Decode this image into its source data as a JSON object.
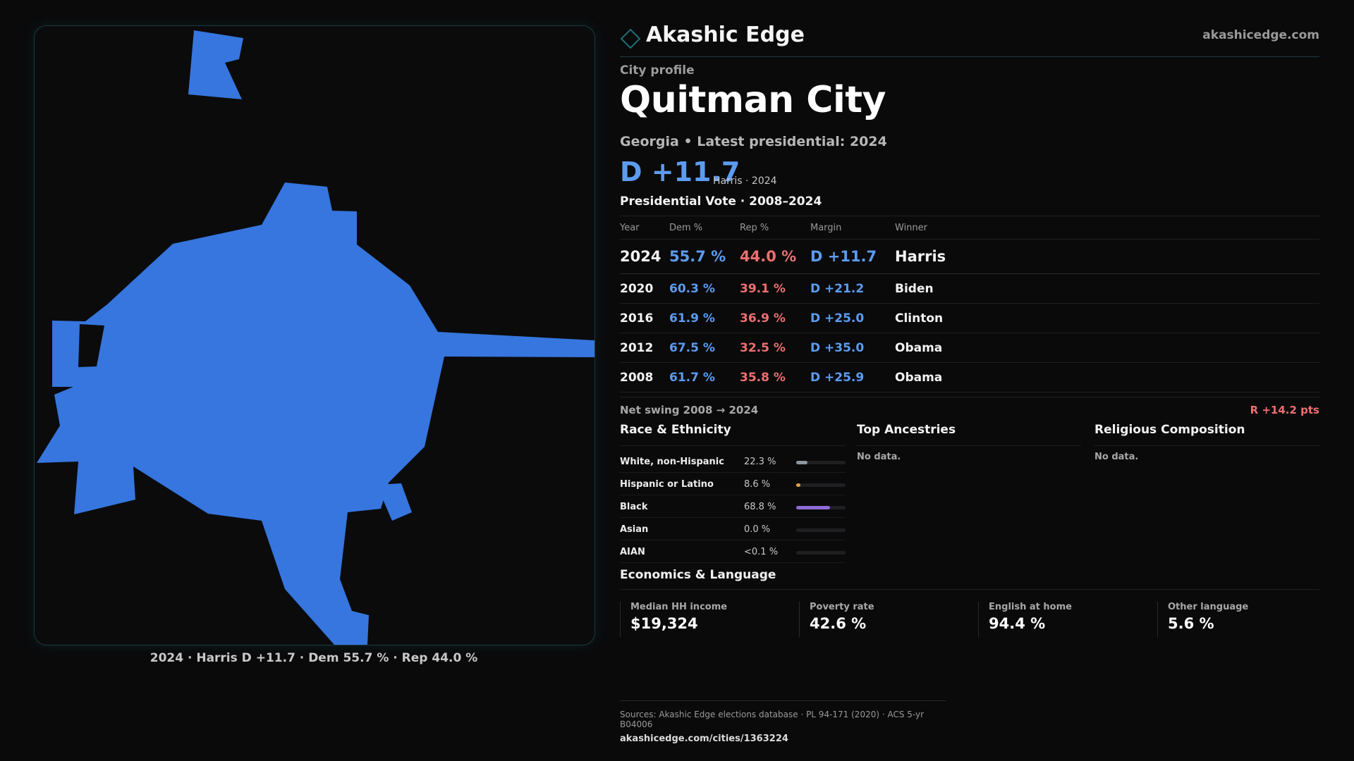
{
  "brand": {
    "name": "Akashic Edge",
    "url": "akashicedge.com",
    "accent_color": "#1e6e78"
  },
  "profile": {
    "kicker": "City profile",
    "city": "Quitman City",
    "subtitle": "Georgia • Latest presidential: 2024",
    "margin_headline": "D +11.7",
    "margin_note": "Harris · 2024"
  },
  "map": {
    "fill_color": "#3676de",
    "caption": "2024 · Harris D +11.7 · Dem 55.7 % · Rep 44.0 %"
  },
  "vote_table": {
    "title": "Presidential Vote · 2008–2024",
    "headers": [
      "Year",
      "Dem %",
      "Rep %",
      "Margin",
      "Winner"
    ],
    "rows": [
      {
        "year": "2024",
        "dem": "55.7 %",
        "rep": "44.0 %",
        "margin": "D +11.7",
        "winner": "Harris"
      },
      {
        "year": "2020",
        "dem": "60.3 %",
        "rep": "39.1 %",
        "margin": "D +21.2",
        "winner": "Biden"
      },
      {
        "year": "2016",
        "dem": "61.9 %",
        "rep": "36.9 %",
        "margin": "D +25.0",
        "winner": "Clinton"
      },
      {
        "year": "2012",
        "dem": "67.5 %",
        "rep": "32.5 %",
        "margin": "D +35.0",
        "winner": "Obama"
      },
      {
        "year": "2008",
        "dem": "61.7 %",
        "rep": "35.8 %",
        "margin": "D +25.9",
        "winner": "Obama"
      }
    ],
    "dem_color": "#5c9cf0",
    "rep_color": "#ef6f6f"
  },
  "swing": {
    "label": "Net swing 2008 → 2024",
    "value": "R +14.2 pts"
  },
  "race": {
    "title": "Race & Ethnicity",
    "rows": [
      {
        "label": "White, non-Hispanic",
        "pct": "22.3 %",
        "fraction": 0.223,
        "color": "#8e96a3"
      },
      {
        "label": "Hispanic or Latino",
        "pct": "8.6 %",
        "fraction": 0.086,
        "color": "#e0a23a"
      },
      {
        "label": "Black",
        "pct": "68.8 %",
        "fraction": 0.688,
        "color": "#8f6ad6"
      },
      {
        "label": "Asian",
        "pct": "0.0 %",
        "fraction": 0.0,
        "color": "#3fb8a6"
      },
      {
        "label": "AIAN",
        "pct": "<0.1 %",
        "fraction": 0.0,
        "color": "#c56a6a"
      }
    ]
  },
  "ancestries": {
    "title": "Top Ancestries",
    "empty_text": "No data."
  },
  "religion": {
    "title": "Religious Composition",
    "empty_text": "No data."
  },
  "economics": {
    "title": "Economics & Language",
    "cells": [
      {
        "label": "Median HH income",
        "value": "$19,324"
      },
      {
        "label": "Poverty rate",
        "value": "42.6 %"
      },
      {
        "label": "English at home",
        "value": "94.4 %"
      },
      {
        "label": "Other language",
        "value": "5.6 %"
      }
    ]
  },
  "footer": {
    "sources": "Sources: Akashic Edge elections database · PL 94-171 (2020) · ACS 5-yr B04006",
    "url": "akashicedge.com/cities/1363224"
  }
}
